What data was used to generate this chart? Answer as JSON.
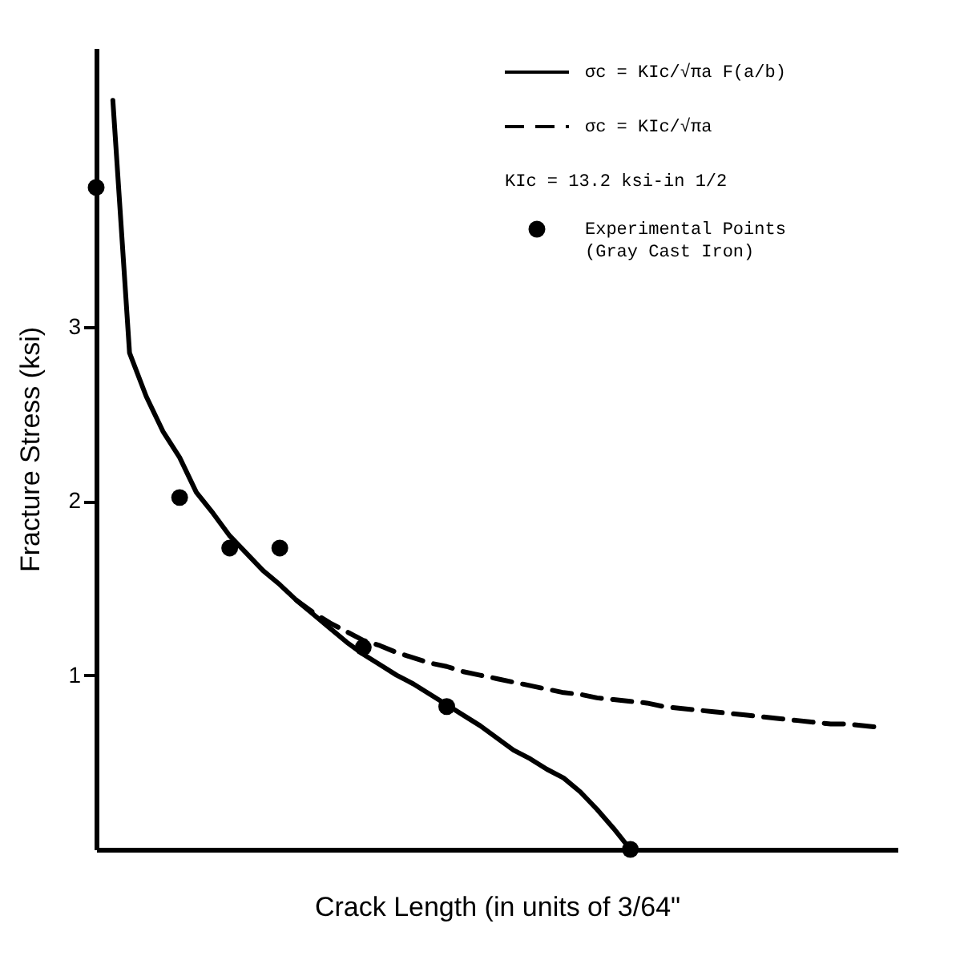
{
  "chart_data": {
    "type": "line",
    "xlabel": "Crack Length (in units of 3/64\"",
    "ylabel": "Fracture Stress (ksi)",
    "categories": [
      null,
      null,
      null,
      null,
      null,
      null,
      null,
      null,
      null,
      null,
      null,
      null,
      null,
      null,
      null,
      null,
      null,
      null,
      null,
      null,
      null,
      null,
      null,
      null,
      null,
      null,
      null,
      null,
      null,
      null,
      null,
      null,
      null,
      null,
      null,
      null,
      null,
      null,
      null,
      null,
      null,
      null,
      null,
      null,
      null,
      null,
      null,
      null,
      null
    ],
    "ylim": [
      0,
      4.6
    ],
    "yticks": [
      1,
      2,
      3
    ],
    "grid": false,
    "legend": "top right",
    "annotations": [
      "KIc = 13.2 ksi-in 1/2"
    ],
    "series": [
      {
        "name": "σc = KIc/√πa  F(a/b)",
        "type": "line",
        "line_style": "solid",
        "color": "#000000",
        "values": [
          null,
          4.3,
          2.85,
          2.6,
          2.4,
          2.25,
          2.05,
          1.93,
          1.8,
          1.7,
          1.6,
          1.52,
          1.43,
          1.35,
          1.27,
          1.19,
          1.12,
          1.06,
          1.0,
          0.95,
          0.89,
          0.83,
          0.77,
          0.71,
          0.64,
          0.57,
          0.52,
          0.46,
          0.41,
          0.33,
          0.23,
          0.12,
          0.0,
          null,
          null,
          null,
          null,
          null,
          null,
          null,
          null,
          null,
          null,
          null,
          null,
          null,
          null,
          null,
          null
        ]
      },
      {
        "name": "σc = KIc/√πa",
        "type": "line",
        "line_style": "dashed",
        "color": "#000000",
        "values": [
          null,
          null,
          null,
          null,
          null,
          null,
          null,
          null,
          null,
          null,
          null,
          null,
          1.43,
          1.36,
          1.3,
          1.25,
          1.2,
          1.17,
          1.13,
          1.1,
          1.07,
          1.05,
          1.02,
          1.0,
          0.98,
          0.96,
          0.94,
          0.92,
          0.9,
          0.89,
          0.87,
          0.86,
          0.85,
          0.84,
          0.82,
          0.81,
          0.8,
          0.79,
          0.78,
          0.77,
          0.76,
          0.75,
          0.74,
          0.73,
          0.72,
          0.72,
          0.71,
          0.7,
          null
        ]
      },
      {
        "name": "Experimental Points (Gray Cast Iron)",
        "type": "scatter",
        "marker": "circle",
        "color": "#000000",
        "values": [
          3.8,
          null,
          null,
          null,
          null,
          2.02,
          null,
          null,
          1.73,
          null,
          null,
          1.73,
          null,
          null,
          null,
          null,
          1.16,
          null,
          null,
          null,
          null,
          0.82,
          null,
          null,
          null,
          null,
          null,
          null,
          null,
          null,
          null,
          null,
          0.0,
          null,
          null,
          null,
          null,
          null,
          null,
          null,
          null,
          null,
          null,
          null,
          null,
          null,
          null,
          null,
          null
        ]
      }
    ]
  }
}
